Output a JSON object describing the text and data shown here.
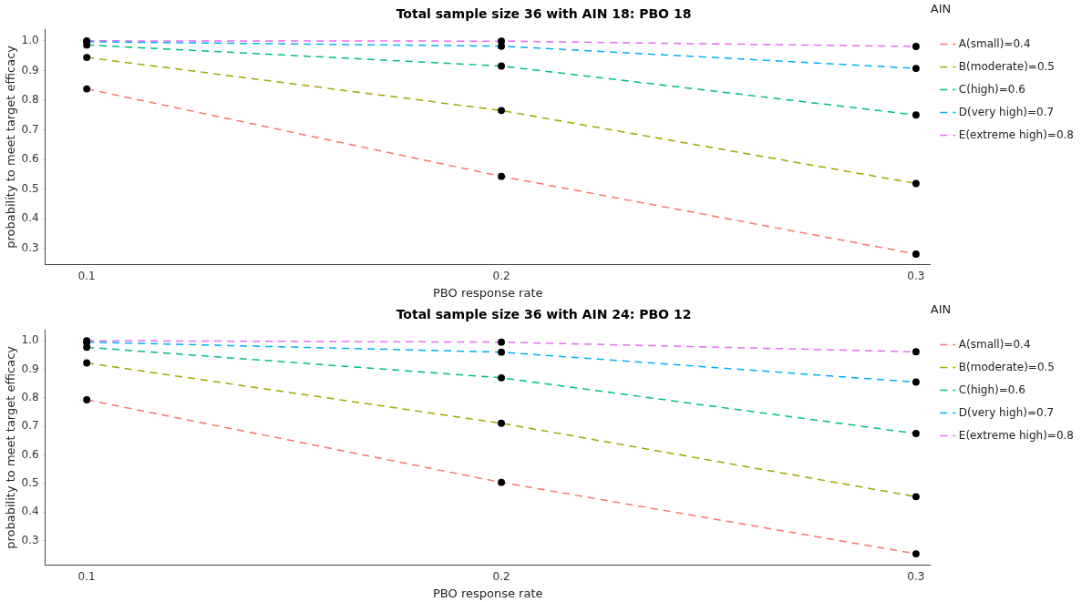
{
  "chart_data": [
    {
      "type": "line",
      "title": "Total sample size 36 with AIN 18: PBO 18",
      "xlabel": "PBO response rate",
      "ylabel": "probability to meet target efficacy",
      "legend_title": "AIN",
      "legend": "right",
      "marker": "circle",
      "line_style": "dashed",
      "grid": false,
      "x": [
        0.1,
        0.2,
        0.3
      ],
      "xlim": [
        0.09,
        0.3035
      ],
      "xticks": [
        0.1,
        0.2,
        0.3
      ],
      "ylim": [
        0.247,
        1.037
      ],
      "yticks": [
        0.3,
        0.4,
        0.5,
        0.6,
        0.7,
        0.8,
        0.9,
        {
          "value": 1,
          "label": "1.0"
        }
      ],
      "series": [
        {
          "name": "A(small)=0.4",
          "color": "#f8766d",
          "values": [
            0.838,
            0.543,
            0.281
          ]
        },
        {
          "name": "B(moderate)=0.5",
          "color": "#a3a500",
          "values": [
            0.944,
            0.765,
            0.519
          ]
        },
        {
          "name": "C(high)=0.6",
          "color": "#00bf7d",
          "values": [
            0.986,
            0.915,
            0.75
          ]
        },
        {
          "name": "D(very high)=0.7",
          "color": "#00b0f6",
          "values": [
            0.997,
            0.982,
            0.907
          ]
        },
        {
          "name": "E(extreme high)=0.8",
          "color": "#e76bf3",
          "values": [
            1.0,
            0.999,
            0.981
          ]
        }
      ]
    },
    {
      "type": "line",
      "title": "Total sample size 36 with AIN 24: PBO 12",
      "xlabel": "PBO response rate",
      "ylabel": "probability to meet target efficacy",
      "legend_title": "AIN",
      "legend": "right",
      "marker": "circle",
      "line_style": "dashed",
      "grid": false,
      "x": [
        0.1,
        0.2,
        0.3
      ],
      "xlim": [
        0.09,
        0.3035
      ],
      "xticks": [
        0.1,
        0.2,
        0.3
      ],
      "ylim": [
        0.216,
        1.036
      ],
      "yticks": [
        0.3,
        0.4,
        0.5,
        0.6,
        0.7,
        0.8,
        0.9,
        {
          "value": 1,
          "label": "1.0"
        }
      ],
      "series": [
        {
          "name": "A(small)=0.4",
          "color": "#f8766d",
          "values": [
            0.793,
            0.504,
            0.254
          ]
        },
        {
          "name": "B(moderate)=0.5",
          "color": "#a3a500",
          "values": [
            0.922,
            0.711,
            0.454
          ]
        },
        {
          "name": "C(high)=0.6",
          "color": "#00bf7d",
          "values": [
            0.977,
            0.87,
            0.675
          ]
        },
        {
          "name": "D(very high)=0.7",
          "color": "#00b0f6",
          "values": [
            0.995,
            0.96,
            0.855
          ]
        },
        {
          "name": "E(extreme high)=0.8",
          "color": "#e76bf3",
          "values": [
            1.0,
            0.995,
            0.961
          ]
        }
      ]
    }
  ]
}
